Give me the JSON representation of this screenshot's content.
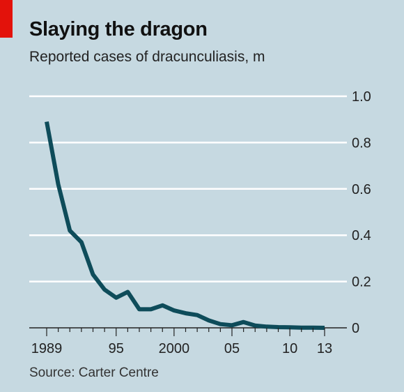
{
  "header": {
    "title": "Slaying the dragon",
    "subtitle": "Reported cases of dracunculiasis, m"
  },
  "footer": {
    "source": "Source: Carter Centre"
  },
  "colors": {
    "background": "#c6d9e1",
    "line": "#0e4c5a",
    "gridline": "#ffffff",
    "accent": "#e3120b"
  },
  "chart_data": {
    "type": "line",
    "title": "Slaying the dragon",
    "subtitle": "Reported cases of dracunculiasis, m",
    "xlabel": "",
    "ylabel": "",
    "ylim": [
      0,
      1.0
    ],
    "xlim": [
      1989,
      2013
    ],
    "grid": true,
    "x_tick_labels": [
      {
        "x": 1989,
        "label": "1989"
      },
      {
        "x": 1995,
        "label": "95"
      },
      {
        "x": 2000,
        "label": "2000"
      },
      {
        "x": 2005,
        "label": "05"
      },
      {
        "x": 2010,
        "label": "10"
      },
      {
        "x": 2013,
        "label": "13"
      }
    ],
    "y_tick_labels": [
      {
        "y": 0,
        "label": "0"
      },
      {
        "y": 0.2,
        "label": "0.2"
      },
      {
        "y": 0.4,
        "label": "0.4"
      },
      {
        "y": 0.6,
        "label": "0.6"
      },
      {
        "y": 0.8,
        "label": "0.8"
      },
      {
        "y": 1.0,
        "label": "1.0"
      }
    ],
    "series": [
      {
        "x": [
          1989,
          1990,
          1991,
          1992,
          1993,
          1994,
          1995,
          1996,
          1997,
          1998,
          1999,
          2000,
          2001,
          2002,
          2003,
          2004,
          2005,
          2006,
          2007,
          2008,
          2009,
          2010,
          2011,
          2012,
          2013
        ],
        "values": [
          0.89,
          0.62,
          0.42,
          0.37,
          0.23,
          0.165,
          0.13,
          0.155,
          0.08,
          0.08,
          0.097,
          0.075,
          0.063,
          0.055,
          0.032,
          0.016,
          0.011,
          0.025,
          0.01,
          0.005,
          0.003,
          0.002,
          0.001,
          0.001,
          0.0001
        ]
      }
    ]
  }
}
